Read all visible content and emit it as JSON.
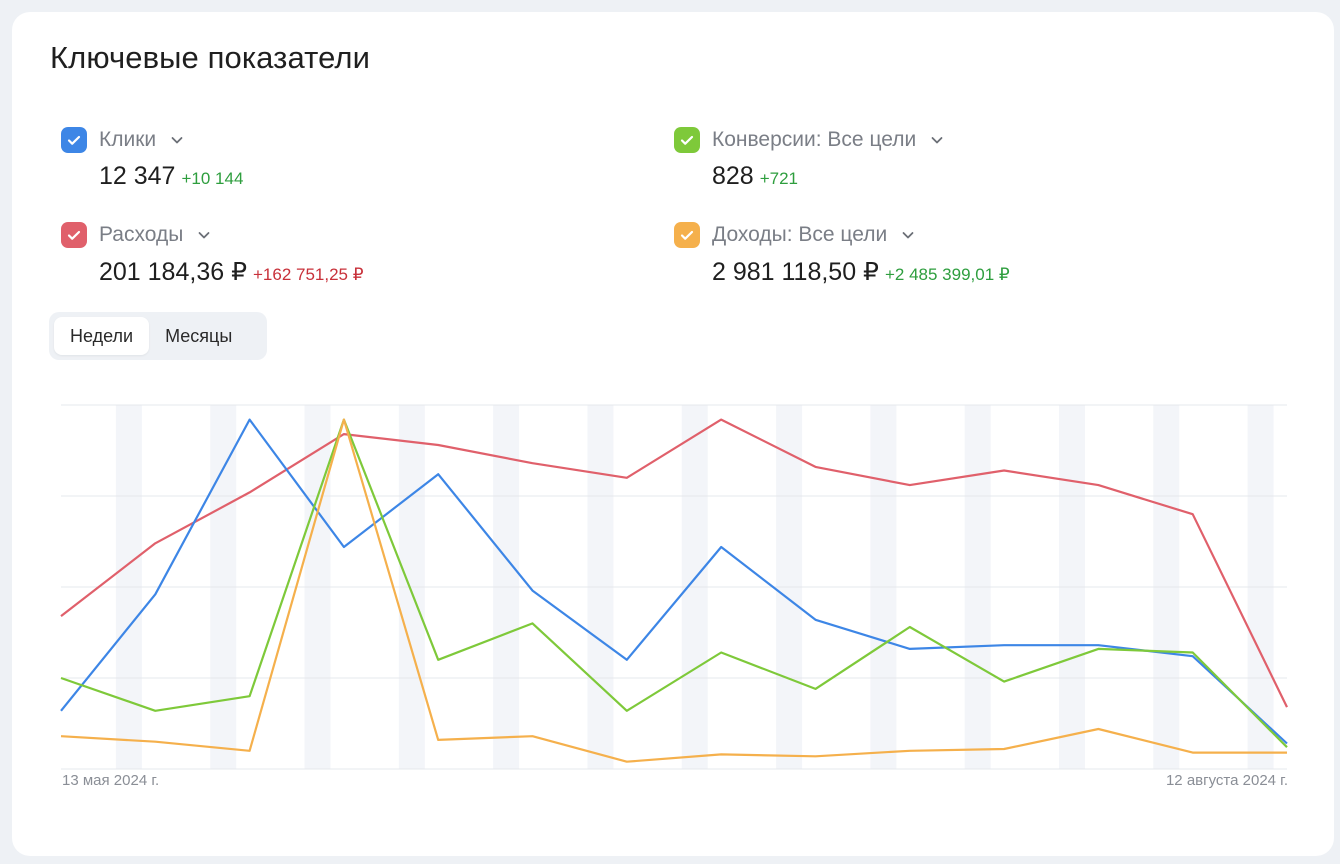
{
  "title": "Ключевые показатели",
  "metrics": {
    "clicks": {
      "label": "Клики",
      "value": "12 347",
      "delta": "+10 144",
      "color": "#3d86e6"
    },
    "conversions": {
      "label": "Конверсии: Все цели",
      "value": "828",
      "delta": "+721",
      "color": "#7ec93a"
    },
    "expenses": {
      "label": "Расходы",
      "value": "201 184,36 ₽",
      "delta": "+162 751,25 ₽",
      "color": "#e0606b"
    },
    "income": {
      "label": "Доходы: Все цели",
      "value": "2 981 118,50 ₽",
      "delta": "+2 485 399,01 ₽",
      "color": "#f5b04c"
    }
  },
  "period_toggle": {
    "weeks": "Недели",
    "months": "Месяцы",
    "active": "weeks"
  },
  "chart_data": {
    "type": "line",
    "x_start_label": "13 мая 2024 г.",
    "x_end_label": "12 августа 2024 г.",
    "y_scale": "normalized 0-1 per series (no printed y axis)",
    "grid": true,
    "series": [
      {
        "key": "expenses",
        "color": "#e0606b",
        "values": [
          0.42,
          0.62,
          0.76,
          0.92,
          0.89,
          0.84,
          0.8,
          0.96,
          0.83,
          0.78,
          0.82,
          0.78,
          0.7,
          0.17
        ]
      },
      {
        "key": "clicks",
        "color": "#3d86e6",
        "values": [
          0.16,
          0.48,
          0.96,
          0.61,
          0.81,
          0.49,
          0.3,
          0.61,
          0.41,
          0.33,
          0.34,
          0.34,
          0.31,
          0.07
        ]
      },
      {
        "key": "conversions",
        "color": "#7ec93a",
        "values": [
          0.25,
          0.16,
          0.2,
          0.96,
          0.3,
          0.4,
          0.16,
          0.32,
          0.22,
          0.39,
          0.24,
          0.33,
          0.32,
          0.06
        ]
      },
      {
        "key": "income",
        "color": "#f5b04c",
        "values": [
          0.09,
          0.075,
          0.05,
          0.96,
          0.08,
          0.09,
          0.02,
          0.04,
          0.035,
          0.05,
          0.055,
          0.11,
          0.045,
          0.045
        ]
      }
    ]
  },
  "chart_style": {
    "grid_color": "#e6e8ec",
    "stripe_color": "#f3f5f9"
  }
}
